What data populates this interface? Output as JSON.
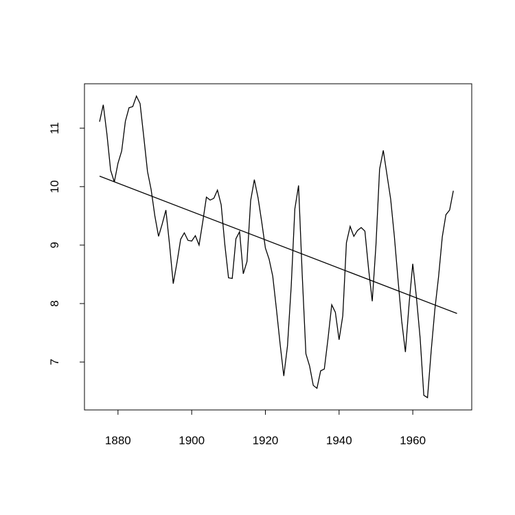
{
  "chart_data": {
    "type": "line",
    "title": "",
    "xlabel": "",
    "ylabel": "",
    "xlim": [
      1870.9,
      1976.0
    ],
    "ylim": [
      6.18,
      11.76
    ],
    "grid": false,
    "x_ticks": [
      "1880",
      "1900",
      "1920",
      "1940",
      "1960"
    ],
    "x_tick_values": [
      1880,
      1900,
      1920,
      1940,
      1960
    ],
    "y_ticks": [
      "7",
      "8",
      "9",
      "10",
      "11"
    ],
    "y_tick_values": [
      7,
      8,
      9,
      10,
      11
    ],
    "x_start": 1875,
    "series": [
      {
        "name": "series",
        "values": [
          11.11,
          11.4,
          10.9,
          10.28,
          10.08,
          10.4,
          10.61,
          11.12,
          11.35,
          11.37,
          11.55,
          11.42,
          10.85,
          10.26,
          9.95,
          9.5,
          9.15,
          9.36,
          9.6,
          9.0,
          8.34,
          8.7,
          9.1,
          9.21,
          9.08,
          9.07,
          9.16,
          9.0,
          9.4,
          9.82,
          9.77,
          9.8,
          9.94,
          9.69,
          9.0,
          8.44,
          8.43,
          9.11,
          9.23,
          8.51,
          8.72,
          9.76,
          10.12,
          9.81,
          9.4,
          8.95,
          8.76,
          8.47,
          7.9,
          7.3,
          6.76,
          7.28,
          8.3,
          9.62,
          10.02,
          8.5,
          7.14,
          6.93,
          6.6,
          6.55,
          6.85,
          6.88,
          7.4,
          7.98,
          7.85,
          7.38,
          7.79,
          9.04,
          9.32,
          9.15,
          9.25,
          9.3,
          9.24,
          8.6,
          8.04,
          9.0,
          10.3,
          10.62,
          10.2,
          9.79,
          9.15,
          8.4,
          7.7,
          7.17,
          8.0,
          8.68,
          8.1,
          7.4,
          6.43,
          6.39,
          7.2,
          7.9,
          8.46,
          9.14,
          9.52,
          9.6,
          9.93
        ]
      }
    ],
    "trend_line": {
      "x": [
        1875,
        1972
      ],
      "y": [
        10.18,
        7.83
      ]
    }
  }
}
